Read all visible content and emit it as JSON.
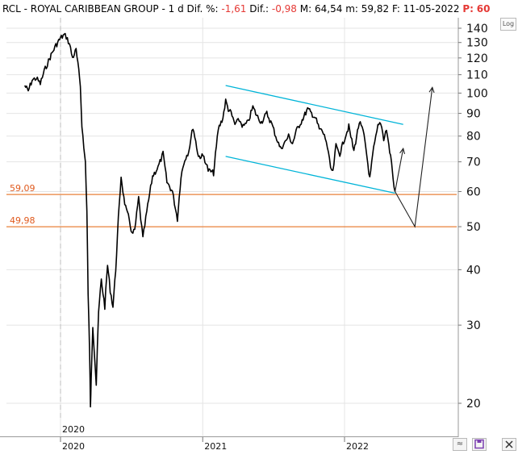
{
  "header": {
    "symbol": "RCL",
    "name": "ROYAL CARIBBEAN GROUP",
    "timeframe": "1 d",
    "dif_pct_label": "Dif. %:",
    "dif_pct_value": "-1,61",
    "dif_label": "Dif.:",
    "dif_value": "-0,98",
    "max_label": "M:",
    "max_value": "64,54",
    "min_label": "m:",
    "min_value": "59,82",
    "date_label": "F:",
    "date_value": "11-05-2022",
    "p_label": "P:",
    "p_value": "60"
  },
  "toolbar": {
    "log_label": "Log",
    "wave_icon": "wave-icon",
    "save_icon": "save-icon",
    "crosshair_icon": "crosshair-icon"
  },
  "colors": {
    "price": "#000000",
    "channel": "#00b4d8",
    "support": "#e8803a",
    "support_label": "#e05a1e",
    "grid": "#e4e4e4",
    "negative": "#e53935"
  },
  "chart_data": {
    "type": "line",
    "scale": "log",
    "ylim": [
      18,
      150
    ],
    "x_start": "2019-10-01",
    "x_end": "2022-12-31",
    "ytick_labels": [
      "140",
      "130",
      "120",
      "110",
      "100",
      "90",
      "80",
      "70",
      "60",
      "50",
      "40",
      "30",
      "20"
    ],
    "yticks": [
      140,
      130,
      120,
      110,
      100,
      90,
      80,
      70,
      60,
      50,
      40,
      30,
      20
    ],
    "xtick_labels": [
      "2020",
      "2021",
      "2022"
    ],
    "xticks": [
      "2020-01-01",
      "2021-01-01",
      "2022-01-01"
    ],
    "grid": true,
    "series": [
      {
        "kind": "price",
        "points": [
          [
            "2019-10-01",
            104
          ],
          [
            "2019-10-10",
            101
          ],
          [
            "2019-10-20",
            107
          ],
          [
            "2019-10-31",
            108
          ],
          [
            "2019-11-10",
            105
          ],
          [
            "2019-11-20",
            112
          ],
          [
            "2019-12-01",
            118
          ],
          [
            "2019-12-10",
            123
          ],
          [
            "2019-12-20",
            128
          ],
          [
            "2020-01-01",
            133
          ],
          [
            "2020-01-10",
            135
          ],
          [
            "2020-01-16",
            134
          ],
          [
            "2020-01-24",
            129
          ],
          [
            "2020-02-01",
            120
          ],
          [
            "2020-02-10",
            125
          ],
          [
            "2020-02-17",
            112
          ],
          [
            "2020-02-21",
            104
          ],
          [
            "2020-02-25",
            85
          ],
          [
            "2020-03-01",
            75
          ],
          [
            "2020-03-05",
            70
          ],
          [
            "2020-03-09",
            54
          ],
          [
            "2020-03-12",
            35
          ],
          [
            "2020-03-16",
            26
          ],
          [
            "2020-03-18",
            19.5
          ],
          [
            "2020-03-20",
            23
          ],
          [
            "2020-03-24",
            30
          ],
          [
            "2020-03-27",
            27
          ],
          [
            "2020-04-02",
            22
          ],
          [
            "2020-04-08",
            32
          ],
          [
            "2020-04-15",
            38
          ],
          [
            "2020-04-24",
            33
          ],
          [
            "2020-05-01",
            41
          ],
          [
            "2020-05-08",
            36
          ],
          [
            "2020-05-15",
            33
          ],
          [
            "2020-05-22",
            40
          ],
          [
            "2020-05-29",
            52
          ],
          [
            "2020-06-05",
            65
          ],
          [
            "2020-06-12",
            58
          ],
          [
            "2020-06-19",
            54
          ],
          [
            "2020-06-26",
            52
          ],
          [
            "2020-07-03",
            48
          ],
          [
            "2020-07-10",
            49
          ],
          [
            "2020-07-20",
            58
          ],
          [
            "2020-07-31",
            47
          ],
          [
            "2020-08-10",
            54
          ],
          [
            "2020-08-25",
            65
          ],
          [
            "2020-09-08",
            68
          ],
          [
            "2020-09-21",
            73
          ],
          [
            "2020-10-01",
            63
          ],
          [
            "2020-10-15",
            60
          ],
          [
            "2020-10-28",
            52
          ],
          [
            "2020-11-06",
            65
          ],
          [
            "2020-11-16",
            71
          ],
          [
            "2020-11-26",
            74
          ],
          [
            "2020-12-07",
            84
          ],
          [
            "2020-12-21",
            72
          ],
          [
            "2021-01-04",
            72
          ],
          [
            "2021-01-15",
            67
          ],
          [
            "2021-01-29",
            66
          ],
          [
            "2021-02-10",
            83
          ],
          [
            "2021-02-22",
            88
          ],
          [
            "2021-03-01",
            96
          ],
          [
            "2021-03-08",
            92
          ],
          [
            "2021-03-15",
            90
          ],
          [
            "2021-03-25",
            85
          ],
          [
            "2021-04-05",
            87
          ],
          [
            "2021-04-15",
            84
          ],
          [
            "2021-04-28",
            86
          ],
          [
            "2021-05-10",
            93
          ],
          [
            "2021-05-20",
            89
          ],
          [
            "2021-06-01",
            86
          ],
          [
            "2021-06-15",
            90
          ],
          [
            "2021-06-28",
            85
          ],
          [
            "2021-07-08",
            80
          ],
          [
            "2021-07-20",
            75
          ],
          [
            "2021-07-30",
            77
          ],
          [
            "2021-08-10",
            80
          ],
          [
            "2021-08-20",
            77
          ],
          [
            "2021-09-01",
            83
          ],
          [
            "2021-09-14",
            87
          ],
          [
            "2021-09-28",
            92
          ],
          [
            "2021-10-08",
            90
          ],
          [
            "2021-10-18",
            88
          ],
          [
            "2021-10-28",
            83
          ],
          [
            "2021-11-05",
            82
          ],
          [
            "2021-11-15",
            78
          ],
          [
            "2021-11-26",
            68
          ],
          [
            "2021-12-02",
            66
          ],
          [
            "2021-12-10",
            76
          ],
          [
            "2021-12-20",
            73
          ],
          [
            "2022-01-03",
            80
          ],
          [
            "2022-01-12",
            84
          ],
          [
            "2022-01-25",
            74
          ],
          [
            "2022-02-08",
            86
          ],
          [
            "2022-02-18",
            82
          ],
          [
            "2022-02-25",
            75
          ],
          [
            "2022-03-07",
            64
          ],
          [
            "2022-03-17",
            75
          ],
          [
            "2022-03-28",
            84
          ],
          [
            "2022-04-04",
            86
          ],
          [
            "2022-04-12",
            79
          ],
          [
            "2022-04-19",
            83
          ],
          [
            "2022-04-25",
            76
          ],
          [
            "2022-05-02",
            70
          ],
          [
            "2022-05-06",
            64
          ],
          [
            "2022-05-11",
            60
          ]
        ]
      },
      {
        "kind": "channel-upper",
        "points": [
          [
            "2021-03-01",
            104
          ],
          [
            "2022-06-01",
            85
          ]
        ]
      },
      {
        "kind": "channel-lower",
        "points": [
          [
            "2021-03-01",
            72
          ],
          [
            "2022-05-11",
            59.5
          ]
        ]
      },
      {
        "kind": "projection-a",
        "points": [
          [
            "2022-05-11",
            60
          ],
          [
            "2022-06-01",
            75
          ]
        ]
      },
      {
        "kind": "projection-b",
        "points": [
          [
            "2022-05-11",
            60
          ],
          [
            "2022-07-01",
            50
          ],
          [
            "2022-08-15",
            103
          ]
        ]
      }
    ],
    "hlines": [
      {
        "value": 59.09,
        "label": "59,09"
      },
      {
        "value": 49.98,
        "label": "49,98"
      }
    ],
    "vline": {
      "x": "2020-01-01",
      "label": "2020"
    }
  }
}
